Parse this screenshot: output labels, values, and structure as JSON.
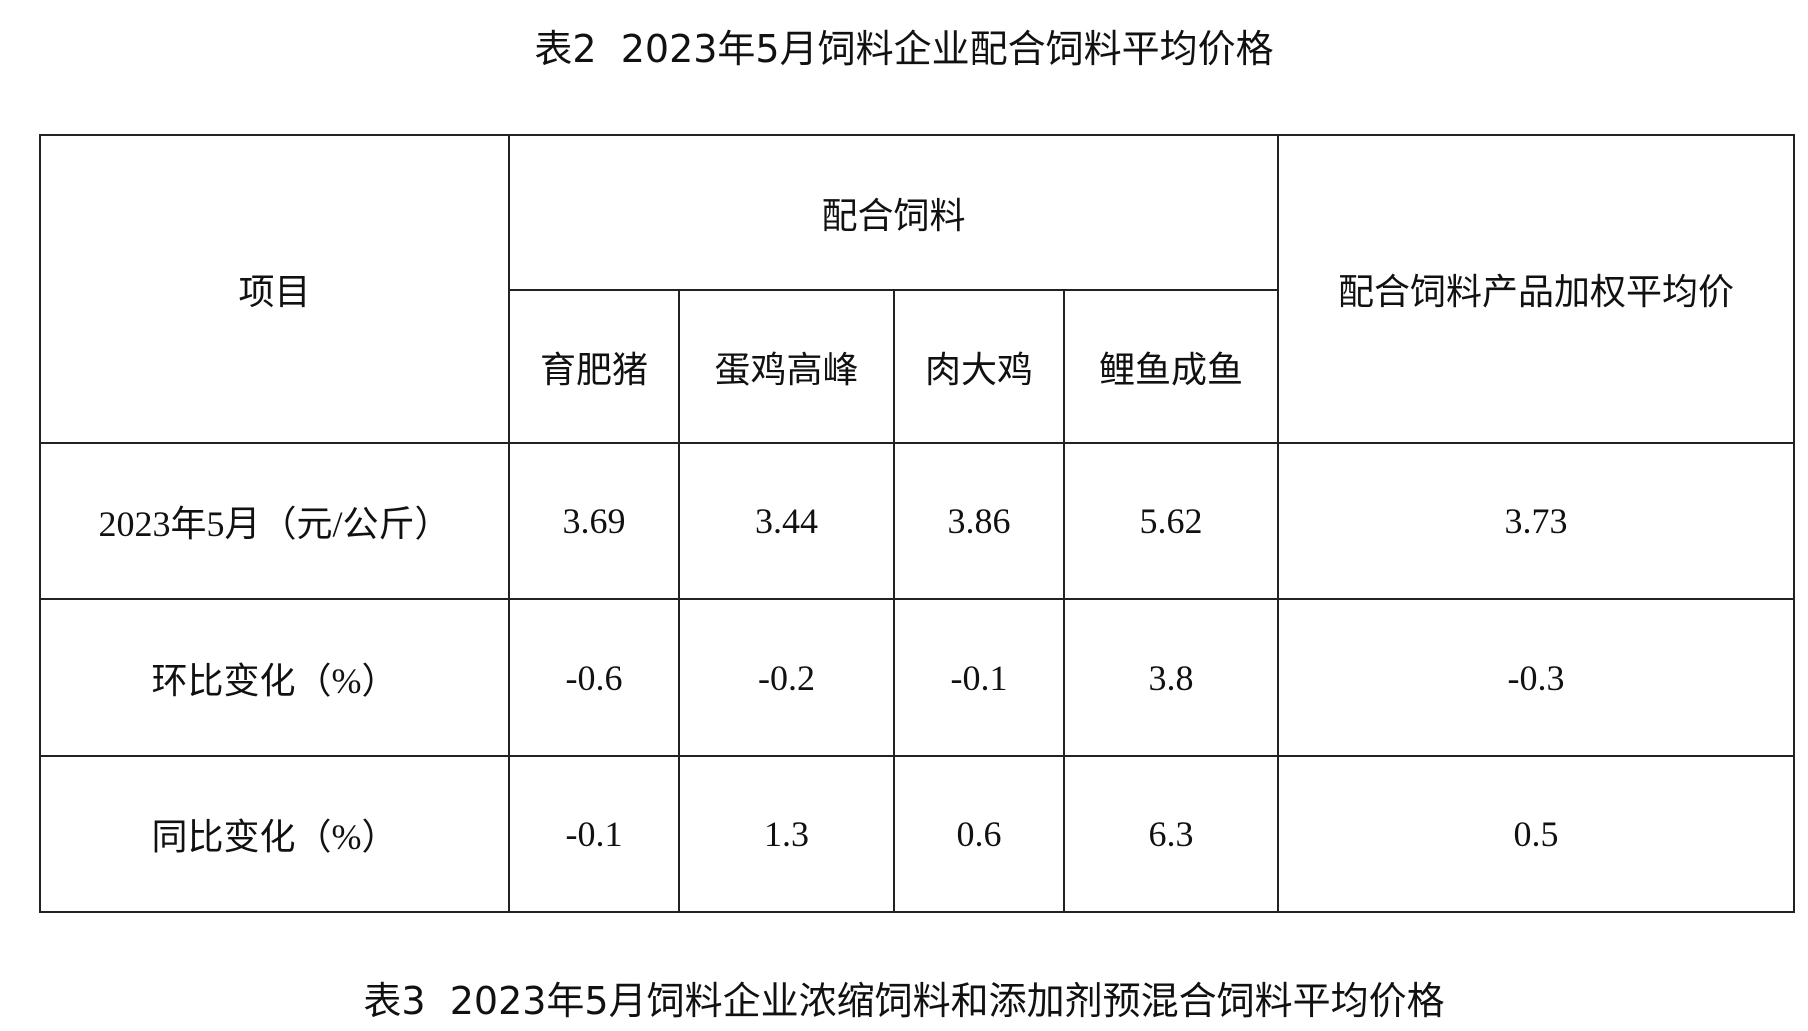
{
  "title": "表2  2023年5月饲料企业配合饲料平均价格",
  "table": {
    "header": {
      "item": "项目",
      "group": "配合饲料",
      "weighted": "配合饲料产品加权平均价",
      "columns": [
        "育肥猪",
        "蛋鸡高峰",
        "肉大鸡",
        "鲤鱼成鱼"
      ]
    },
    "rows": [
      [
        "2023年5月（元/公斤）",
        3.69,
        3.44,
        3.86,
        5.62,
        3.73
      ],
      [
        "环比变化（%）",
        -0.6,
        -0.2,
        -0.1,
        3.8,
        -0.3
      ],
      [
        "同比变化（%）",
        -0.1,
        1.3,
        0.6,
        6.3,
        0.5
      ]
    ]
  },
  "next_title": "表3  2023年5月饲料企业浓缩饲料和添加剂预混合饲料平均价格"
}
